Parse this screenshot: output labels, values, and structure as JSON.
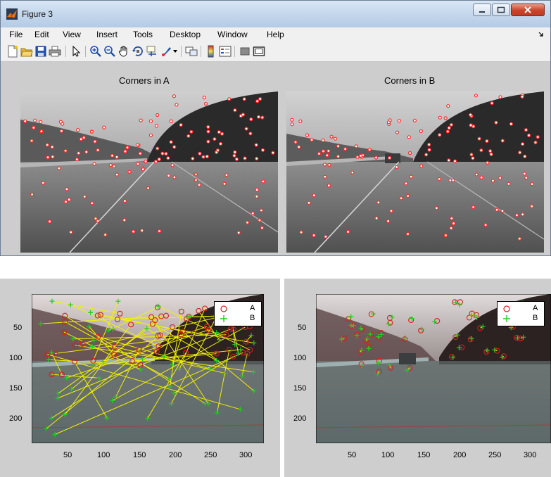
{
  "window": {
    "title": "Figure 3",
    "controls": [
      "minimize",
      "maximize",
      "close"
    ]
  },
  "menu": [
    "File",
    "Edit",
    "View",
    "Insert",
    "Tools",
    "Desktop",
    "Window",
    "Help"
  ],
  "toolbar": {
    "icons": [
      "new-figure-icon",
      "open-file-icon",
      "save-icon",
      "print-icon",
      "select-arrow-icon",
      "zoom-in-icon",
      "zoom-out-icon",
      "pan-hand-icon",
      "rotate-3d-icon",
      "data-cursor-icon",
      "brush-icon",
      "brush-dropdown-icon",
      "link-plot-icon",
      "colorbar-icon",
      "legend-icon",
      "hide-plot-tools-icon",
      "show-plot-tools-icon"
    ]
  },
  "top_titles": {
    "left": "Corners in A",
    "right": "Corners in B"
  },
  "plot_left": {
    "legend": [
      {
        "label": "A",
        "marker": "circle",
        "color": "#d62020"
      },
      {
        "label": "B",
        "marker": "plus",
        "color": "#22cc22"
      }
    ],
    "xticks": [
      "50",
      "100",
      "150",
      "200",
      "250",
      "300"
    ],
    "yticks": [
      "50",
      "100",
      "150",
      "200"
    ]
  },
  "plot_right": {
    "legend": [
      {
        "label": "A",
        "marker": "circle",
        "color": "#d62020"
      },
      {
        "label": "B",
        "marker": "plus",
        "color": "#22cc22"
      }
    ],
    "xticks": [
      "50",
      "100",
      "150",
      "200",
      "250",
      "300"
    ],
    "yticks": [
      "50",
      "100",
      "150",
      "200"
    ]
  },
  "colors": {
    "corner_marker": "#ff2a2a",
    "match_line": "#f2f200",
    "series_a": "#d62020",
    "series_b": "#22cc22"
  }
}
